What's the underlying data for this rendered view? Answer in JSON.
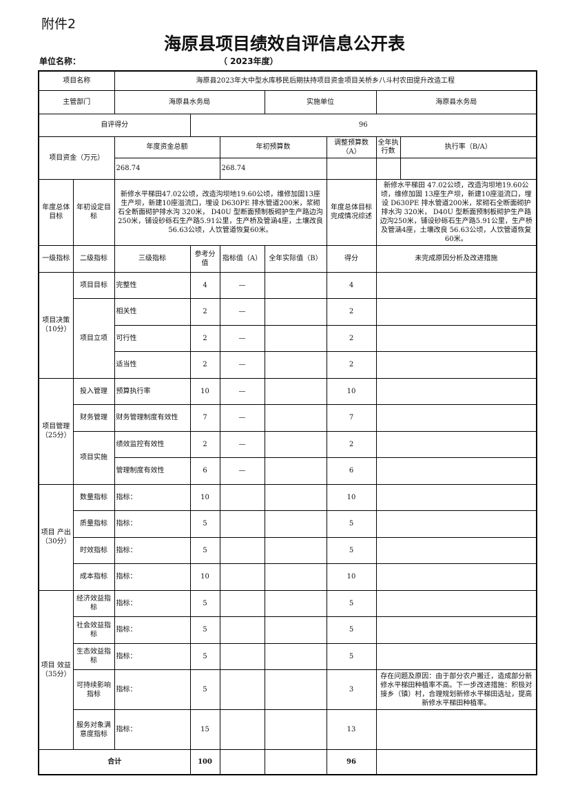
{
  "attachment": "附件2",
  "title": "海原县项目绩效自评信息公开表",
  "unit_label": "单位名称：",
  "year": "（ 2023年度）",
  "project": {
    "name_label": "项目名称",
    "name": "海原县2023年大中型水库移民后期扶持项目资金项目关桥乡八斗村农田提升改造工程",
    "dept_label": "主管部门",
    "dept": "海原县水务局",
    "impl_label": "实施单位",
    "impl": "海原县水务局",
    "score_label": "自评得分",
    "score": "96"
  },
  "funds": {
    "label": "项目资金（万元）",
    "headers": [
      "年度资金总额",
      "年初预算数",
      "调整预算数（A）",
      "全年执行数",
      "执行率（B/A）"
    ],
    "values": [
      "268.74",
      "268.74",
      "",
      "",
      ""
    ]
  },
  "goal": {
    "label": "年度总体目标",
    "set_label": "年初设定目标",
    "set_text": "新修水平梯田47.02公顷，改造沟坝地19.60公顷，维修加固13座生产坝，新建10座溢流口，埋设 D630PE 排水管道200米，浆砌石全断面砌护排水沟 320米， D40U 型断面预制板砌护生产路边沟250米，铺设砂砾石生产路5.91公里，生产桥及管涵4座，土壤改良 56.63公顷，人饮管道恢复60米。",
    "done_label": "年度总体目标完成情况综述",
    "done_text": "新修水平梯田 47.02公顷，改造沟坝地19.60公顷，维修加固 13座生产坝，新建10座溢流口，埋设 D630PE 排水管道200米，浆砌石全断面砌护排水沟 320米， D40U 型断面预制板砌护生产路边沟250米，铺设砂砾石生产路5.91公里，生产桥及管涵4座，土壤改良 56.63公顷，人饮管道恢复60米。"
  },
  "indicator_headers": [
    "一级指标",
    "二级指标",
    "三级指标",
    "参考分值",
    "指标值（A）",
    "全年实际值（B）",
    "得分",
    "未完成原因分析及改进措施"
  ],
  "groups": [
    {
      "name": "项目决策（10分）",
      "subs": [
        {
          "name": "项目目标",
          "rows": [
            {
              "l3": "完整性",
              "ref": "4",
              "a": "—",
              "b": "",
              "score": "4",
              "note": ""
            }
          ]
        },
        {
          "name": "项目立项",
          "rows": [
            {
              "l3": "相关性",
              "ref": "2",
              "a": "—",
              "b": "",
              "score": "2",
              "note": ""
            },
            {
              "l3": "可行性",
              "ref": "2",
              "a": "—",
              "b": "",
              "score": "2",
              "note": ""
            },
            {
              "l3": "适当性",
              "ref": "2",
              "a": "—",
              "b": "",
              "score": "2",
              "note": ""
            }
          ]
        }
      ]
    },
    {
      "name": "项目管理（25分）",
      "subs": [
        {
          "name": "投入管理",
          "rows": [
            {
              "l3": "预算执行率",
              "ref": "10",
              "a": "—",
              "b": "",
              "score": "10",
              "note": ""
            }
          ]
        },
        {
          "name": "财务管理",
          "rows": [
            {
              "l3": "财务管理制度有效性",
              "ref": "7",
              "a": "—",
              "b": "",
              "score": "7",
              "note": ""
            }
          ]
        },
        {
          "name": "项目实施",
          "rows": [
            {
              "l3": "绩效监控有效性",
              "ref": "2",
              "a": "—",
              "b": "",
              "score": "2",
              "note": ""
            },
            {
              "l3": "管理制度有效性",
              "ref": "6",
              "a": "—",
              "b": "",
              "score": "6",
              "note": ""
            }
          ]
        }
      ]
    },
    {
      "name": "项目 产出（30分）",
      "subs": [
        {
          "name": "数量指标",
          "rows": [
            {
              "l3": "指标：",
              "ref": "10",
              "a": "",
              "b": "",
              "score": "10",
              "note": ""
            }
          ]
        },
        {
          "name": "质量指标",
          "rows": [
            {
              "l3": "指标：",
              "ref": "5",
              "a": "",
              "b": "",
              "score": "5",
              "note": ""
            }
          ]
        },
        {
          "name": "时效指标",
          "rows": [
            {
              "l3": "指标：",
              "ref": "5",
              "a": "",
              "b": "",
              "score": "5",
              "note": ""
            }
          ]
        },
        {
          "name": "成本指标",
          "rows": [
            {
              "l3": "指标：",
              "ref": "10",
              "a": "",
              "b": "",
              "score": "10",
              "note": ""
            }
          ]
        }
      ]
    },
    {
      "name": "项目 效益（35分）",
      "subs": [
        {
          "name": "经济效益指标",
          "rows": [
            {
              "l3": "指标：",
              "ref": "5",
              "a": "",
              "b": "",
              "score": "5",
              "note": ""
            }
          ]
        },
        {
          "name": "社会效益指标",
          "rows": [
            {
              "l3": "指标：",
              "ref": "5",
              "a": "",
              "b": "",
              "score": "5",
              "note": ""
            }
          ]
        },
        {
          "name": "生态效益指标",
          "rows": [
            {
              "l3": "指标：",
              "ref": "5",
              "a": "",
              "b": "",
              "score": "5",
              "note": ""
            }
          ]
        },
        {
          "name": "可持续影响指标",
          "rows": [
            {
              "l3": "指标：",
              "ref": "5",
              "a": "",
              "b": "",
              "score": "3",
              "note": "存在问题及原因：由于部分农户搬迁，造成部分新修水平梯田种植率不高。下一步改进措施：积极对接乡（镇）村，合理规划新修水平梯田选址，提高新修水平梯田种植率。"
            }
          ]
        },
        {
          "name": "服务对象满意度指标",
          "rows": [
            {
              "l3": "指标：",
              "ref": "15",
              "a": "",
              "b": "",
              "score": "13",
              "note": ""
            }
          ]
        }
      ]
    }
  ],
  "total": {
    "label": "合计",
    "ref": "100",
    "score": "96"
  }
}
